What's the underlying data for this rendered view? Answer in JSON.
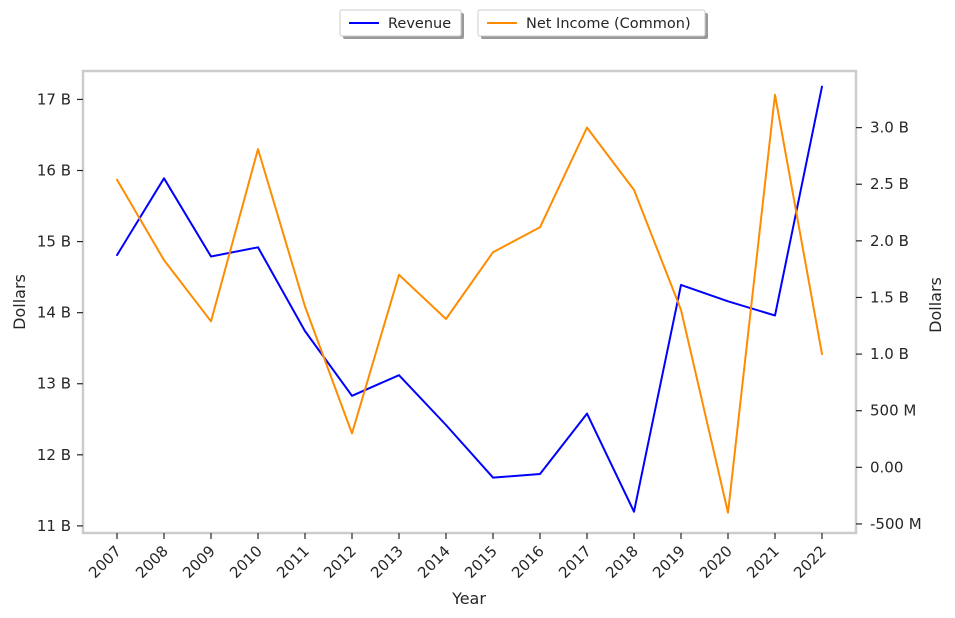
{
  "chart_data": {
    "type": "line",
    "title": "",
    "xlabel": "Year",
    "x": [
      "2007",
      "2008",
      "2009",
      "2010",
      "2011",
      "2012",
      "2013",
      "2014",
      "2015",
      "2016",
      "2017",
      "2018",
      "2019",
      "2020",
      "2021",
      "2022"
    ],
    "left_axis": {
      "label": "Dollars",
      "ylim": [
        10.9,
        17.4
      ],
      "ticks": [
        {
          "value": 11,
          "label": "11 B"
        },
        {
          "value": 12,
          "label": "12 B"
        },
        {
          "value": 13,
          "label": "13 B"
        },
        {
          "value": 14,
          "label": "14 B"
        },
        {
          "value": 15,
          "label": "15 B"
        },
        {
          "value": 16,
          "label": "16 B"
        },
        {
          "value": 17,
          "label": "17 B"
        }
      ]
    },
    "right_axis": {
      "label": "Dollars",
      "ylim": [
        -0.58,
        3.5
      ],
      "ticks": [
        {
          "value": -0.5,
          "label": "-500 M"
        },
        {
          "value": 0.0,
          "label": "0.00"
        },
        {
          "value": 0.5,
          "label": "500 M"
        },
        {
          "value": 1.0,
          "label": "1.0 B"
        },
        {
          "value": 1.5,
          "label": "1.5 B"
        },
        {
          "value": 2.0,
          "label": "2.0 B"
        },
        {
          "value": 2.5,
          "label": "2.5 B"
        },
        {
          "value": 3.0,
          "label": "3.0 B"
        }
      ]
    },
    "series": [
      {
        "name": "Revenue",
        "axis": "left",
        "color": "#0000ff",
        "values": [
          14.81,
          15.89,
          14.79,
          14.92,
          13.74,
          12.83,
          13.12,
          12.42,
          11.68,
          11.73,
          12.58,
          11.2,
          14.39,
          14.16,
          13.96,
          17.18
        ]
      },
      {
        "name": "Net Income (Common)",
        "axis": "right",
        "color": "#ff8c00",
        "values": [
          2.54,
          1.83,
          1.29,
          2.81,
          1.42,
          0.3,
          1.7,
          1.31,
          1.9,
          2.12,
          3.0,
          2.45,
          1.39,
          -0.4,
          3.29,
          1.0
        ]
      }
    ],
    "grid": false,
    "legend_position": "top-center"
  }
}
